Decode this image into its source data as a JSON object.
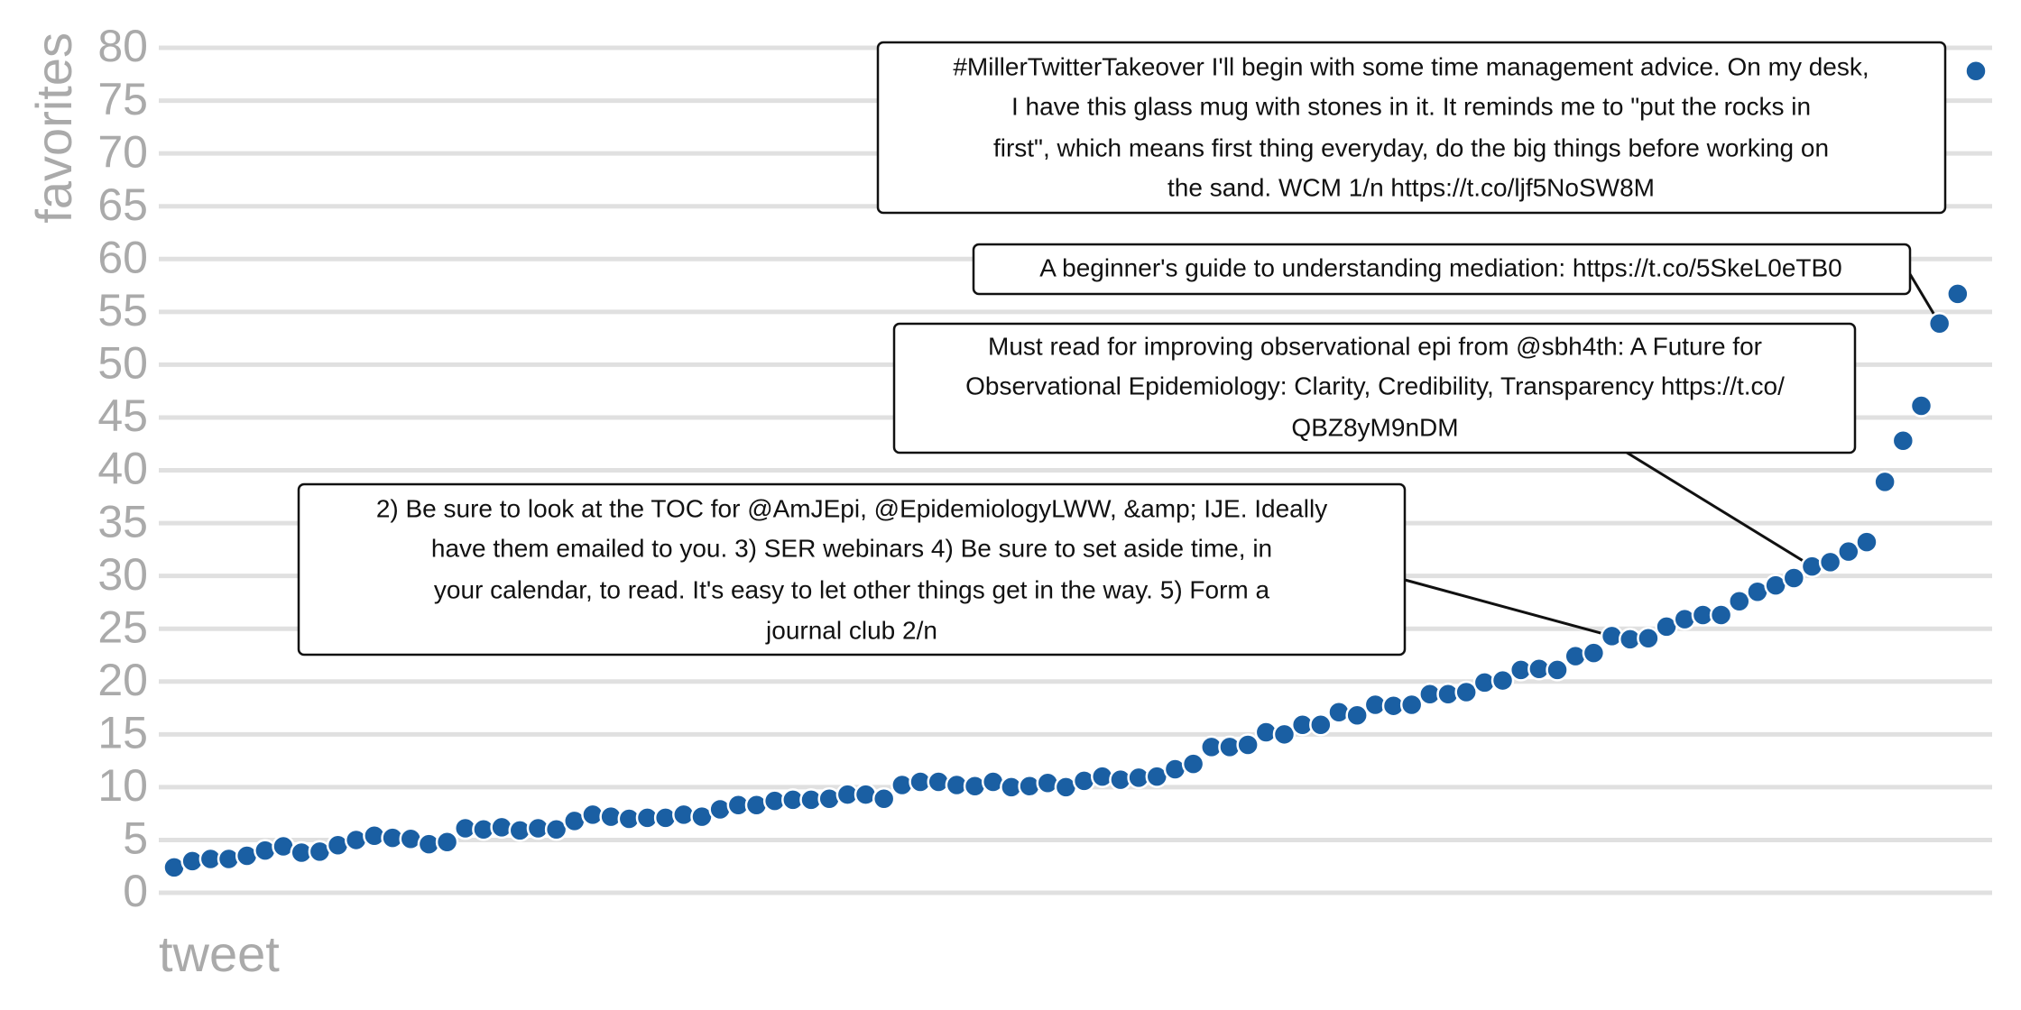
{
  "chart_data": {
    "type": "scatter",
    "y_label": "favorites",
    "x_label": "tweet",
    "color": "#1a5fa3",
    "grid": true,
    "ylim": [
      0,
      80
    ],
    "yticks": [
      0,
      5,
      10,
      15,
      20,
      25,
      30,
      35,
      40,
      45,
      50,
      55,
      60,
      65,
      70,
      75,
      80
    ],
    "values": [
      2.4,
      3,
      3.2,
      3.2,
      3.5,
      4,
      4.4,
      3.8,
      3.9,
      4.5,
      5,
      5.4,
      5.2,
      5.1,
      4.6,
      4.8,
      6.1,
      6,
      6.2,
      5.9,
      6.1,
      6,
      6.8,
      7.4,
      7.2,
      7,
      7.1,
      7.1,
      7.4,
      7.2,
      7.9,
      8.3,
      8.3,
      8.7,
      8.8,
      8.8,
      8.9,
      9.3,
      9.3,
      8.9,
      10.2,
      10.5,
      10.5,
      10.2,
      10.1,
      10.5,
      10,
      10.1,
      10.4,
      10,
      10.6,
      11,
      10.7,
      10.9,
      11,
      11.7,
      12.2,
      13.8,
      13.8,
      14,
      15.2,
      15,
      15.9,
      15.9,
      17.1,
      16.8,
      17.8,
      17.7,
      17.8,
      18.8,
      18.8,
      19,
      19.9,
      20.1,
      21.1,
      21.2,
      21.1,
      22.4,
      22.7,
      24.3,
      24,
      24.1,
      25.2,
      25.9,
      26.3,
      26.3,
      27.6,
      28.5,
      29.1,
      29.8,
      30.9,
      31.3,
      32.3,
      33.2,
      38.9,
      42.8,
      46.1,
      53.9,
      56.7,
      77.8
    ],
    "annotations": [
      {
        "lines": [
          "#MillerTwitterTakeover I'll begin with some time management advice. On my desk,",
          "I have this glass mug with stones in it. It reminds me to \"put the rocks in",
          "first\", which means first thing everyday, do the big things before working on",
          "the sand. WCM 1/n https://t.co/ljf5NoSW8M"
        ]
      },
      {
        "lines": [
          "A beginner's guide to understanding mediation: https://t.co/5SkeL0eTB0"
        ]
      },
      {
        "lines": [
          "Must read for improving observational epi from @sbh4th: A Future for",
          "Observational Epidemiology: Clarity, Credibility, Transparency https://t.co/",
          "QBZ8yM9nDM"
        ]
      },
      {
        "lines": [
          "2) Be sure to look at the TOC for @AmJEpi, @EpidemiologyLWW, &amp; IJE. Ideally",
          "have them emailed to you. 3) SER webinars 4) Be sure to set aside time, in",
          "your calendar, to read. It's easy to let other things get in the way. 5) Form a",
          "journal club 2/n"
        ]
      }
    ]
  }
}
